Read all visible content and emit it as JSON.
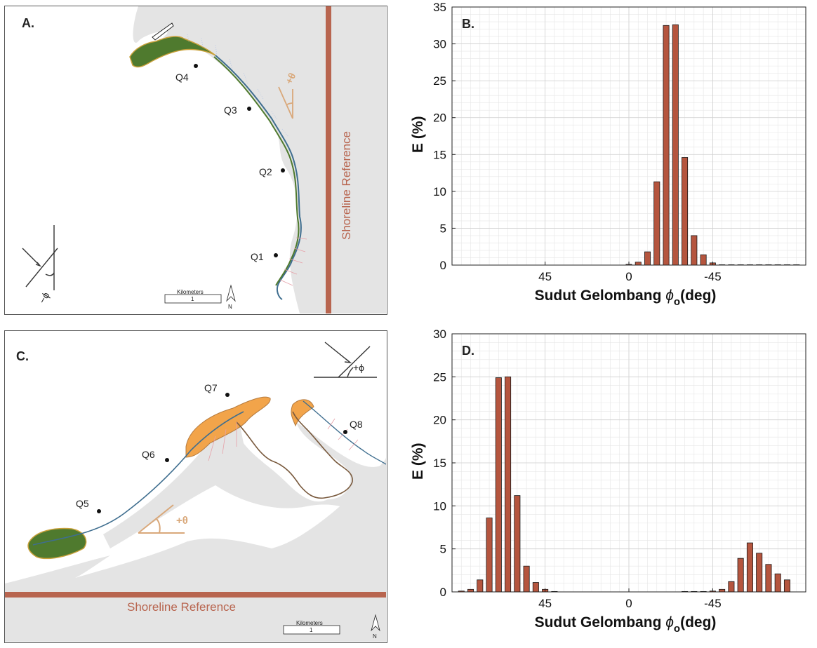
{
  "panels": {
    "a": {
      "letter": "A.",
      "points": [
        "Q1",
        "Q2",
        "Q3",
        "Q4"
      ],
      "shoreline_ref": "Shoreline Reference",
      "angle_label": "+θ",
      "phi_label": "−ϕ",
      "scale_title": "Kilometers",
      "scale_value": "1",
      "north": "N"
    },
    "c": {
      "letter": "C.",
      "points": [
        "Q5",
        "Q6",
        "Q7",
        "Q8"
      ],
      "shoreline_ref": "Shoreline Reference",
      "angle_label": "+θ",
      "phi_label": "+ϕ",
      "scale_title": "Kilometers",
      "scale_value": "1",
      "north": "N"
    }
  },
  "colors": {
    "bar": "#b5553e",
    "bar_edge": "#1a1a1a",
    "shoreline": "#b8654f",
    "land": "#e4e4e4",
    "green": "#4f7a2e",
    "orange": "#f2a44a"
  },
  "chart_data": [
    {
      "type": "bar",
      "title": "B.",
      "xlabel": "Sudut Gelombang",
      "xlabel_symbol": "ϕ",
      "xlabel_sub": "o",
      "xlabel_unit": "(deg)",
      "ylabel": "E (%)",
      "xlim": [
        95,
        -95
      ],
      "ylim": [
        0,
        35
      ],
      "yticks": [
        0,
        5,
        10,
        15,
        20,
        25,
        30,
        35
      ],
      "xticks": [
        45,
        0,
        -45
      ],
      "xtick_labels": [
        "45",
        "0",
        "-45"
      ],
      "grid": true,
      "x": [
        0,
        -5,
        -10,
        -15,
        -20,
        -25,
        -30,
        -35,
        -40,
        -45,
        -50,
        -55,
        -60,
        -65,
        -70,
        -75,
        -80,
        -85,
        -90
      ],
      "values": [
        0.1,
        0.4,
        1.8,
        11.3,
        32.5,
        32.6,
        14.6,
        4.0,
        1.4,
        0.3,
        0.05,
        0.05,
        0.05,
        0.05,
        0.05,
        0.05,
        0.05,
        0.05,
        0.05
      ]
    },
    {
      "type": "bar",
      "title": "D.",
      "xlabel": "Sudut Gelombang",
      "xlabel_symbol": "ϕ",
      "xlabel_sub": "o",
      "xlabel_unit": "(deg)",
      "ylabel": "E (%)",
      "xlim": [
        95,
        -95
      ],
      "ylim": [
        0,
        30
      ],
      "yticks": [
        0,
        5,
        10,
        15,
        20,
        25,
        30
      ],
      "xticks": [
        45,
        0,
        -45
      ],
      "xtick_labels": [
        "45",
        "0",
        "-45"
      ],
      "grid": true,
      "x": [
        90,
        85,
        80,
        75,
        70,
        65,
        60,
        55,
        50,
        45,
        40,
        -30,
        -35,
        -40,
        -45,
        -50,
        -55,
        -60,
        -65,
        -70,
        -75,
        -80,
        -85,
        -90
      ],
      "values": [
        0.1,
        0.3,
        1.4,
        8.6,
        24.9,
        25.0,
        11.2,
        3.0,
        1.1,
        0.3,
        0.05,
        0.05,
        0.05,
        0.05,
        0.1,
        0.3,
        1.2,
        3.9,
        5.7,
        4.5,
        3.2,
        2.1,
        1.4,
        0.0
      ]
    }
  ]
}
